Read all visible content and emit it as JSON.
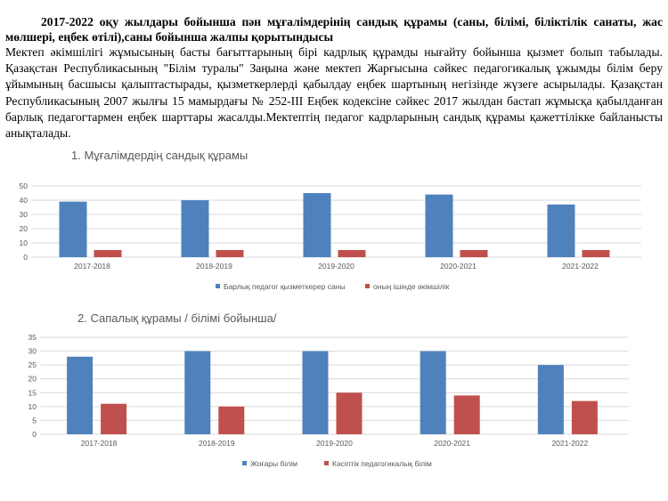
{
  "heading": "2017-2022 оқу жылдары бойынша пән мұғалімдерінің сандық құрамы (саны, білімі, біліктілік санаты, жас мөлшері, еңбек өтілі),саны бойынша жалпы қорытындысы",
  "paragraph": "Мектеп әкімшілігі жұмысының басты бағыттарының бірі кадрлық құрамды нығайту бойынша қызмет болып табылады. Қазақстан Республикасының \"Білім туралы\" Заңына және мектеп Жарғысына сәйкес педагогикалық ұжымды білім беру ұйымының басшысы қалыптастырады, қызметкерлерді қабылдау еңбек шартының негізінде жүзеге асырылады. Қазақстан Республикасының 2007 жылғы 15 мамырдағы № 252-ІІІ Еңбек кодексіне сәйкес 2017 жылдан бастап жұмысқа қабылданған барлық педагогтармен еңбек шарттары жасалды.Мектептің педагог кадрларының сандық құрамы қажеттілікке байланысты анықталады.",
  "colors": {
    "series1": "#4F81BD",
    "series2": "#C0504D",
    "grid": "#D9D9D9",
    "text": "#595959"
  },
  "chart_data": [
    {
      "type": "bar",
      "title": "1. Мұғалімдердің сандық құрамы",
      "categories": [
        "2017-2018",
        "2018-2019",
        "2019-2020",
        "2020-2021",
        "2021-2022"
      ],
      "series": [
        {
          "name": "Барлық педагог қызметкерер саны",
          "values": [
            39,
            40,
            45,
            44,
            37
          ]
        },
        {
          "name": "оның ішінде әкімшілік",
          "values": [
            5,
            5,
            5,
            5,
            5
          ]
        }
      ],
      "yticks": [
        0,
        10,
        20,
        30,
        40,
        50
      ],
      "ylim": [
        0,
        50
      ],
      "grid": true,
      "legend": "bottom"
    },
    {
      "type": "bar",
      "title": "2. Сапалық құрамы / білімі бойынша/",
      "categories": [
        "2017-2018",
        "2018-2019",
        "2019-2020",
        "2020-2021",
        "2021-2022"
      ],
      "series": [
        {
          "name": "Жоғары білім",
          "values": [
            28,
            30,
            30,
            30,
            25
          ]
        },
        {
          "name": "Кәсіптік педагогикалық білім",
          "values": [
            11,
            10,
            15,
            14,
            12
          ]
        }
      ],
      "yticks": [
        0,
        5,
        10,
        15,
        20,
        25,
        30,
        35
      ],
      "ylim": [
        0,
        35
      ],
      "grid": true,
      "legend": "bottom"
    }
  ]
}
